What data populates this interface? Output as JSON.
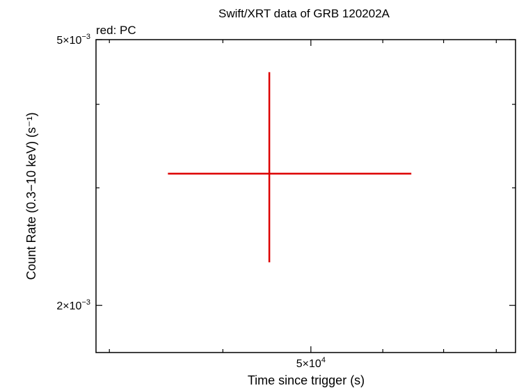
{
  "chart_data": {
    "type": "scatter",
    "title": "Swift/XRT data of GRB 120202A",
    "legend_note": "red: PC",
    "xlabel": "Time since trigger (s)",
    "ylabel": "Count Rate (0.3−10 keV) (s⁻¹)",
    "x_scale": "log",
    "y_scale": "log",
    "xlim": [
      29000,
      84000
    ],
    "ylim": [
      0.0017,
      0.005
    ],
    "x_major_ticks": [
      {
        "value": 50000,
        "mant": "5×10",
        "exp": "4"
      }
    ],
    "x_minor_ticks": [
      30000,
      40000,
      60000,
      70000,
      80000
    ],
    "y_major_ticks": [
      {
        "value": 0.002,
        "mant": "2×10",
        "exp": "−3"
      },
      {
        "value": 0.005,
        "mant": "5×10",
        "exp": "−3"
      }
    ],
    "y_minor_ticks": [
      0.003,
      0.004
    ],
    "series": [
      {
        "name": "PC",
        "color": "#dd0000",
        "points": [
          {
            "x": 45000,
            "x_err_low": 10200,
            "x_err_high": 19500,
            "y": 0.00315,
            "y_err_low": 0.00083,
            "y_err_high": 0.00132
          }
        ]
      }
    ],
    "grid": false
  }
}
